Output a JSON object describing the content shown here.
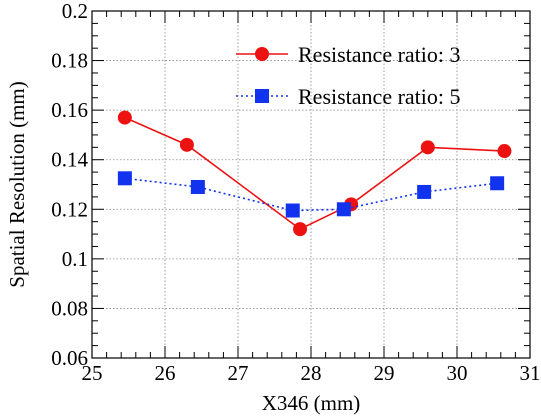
{
  "chart_data": {
    "type": "line",
    "xlabel": "X346 (mm)",
    "ylabel": "Spatial Resolution (mm)",
    "xlim": [
      25,
      31
    ],
    "ylim": [
      0.06,
      0.2
    ],
    "x_ticks": [
      25,
      26,
      27,
      28,
      29,
      30,
      31
    ],
    "x_tick_labels": [
      "25",
      "26",
      "27",
      "28",
      "29",
      "30",
      "31"
    ],
    "y_ticks": [
      0.06,
      0.08,
      0.1,
      0.12,
      0.14,
      0.16,
      0.18,
      0.2
    ],
    "y_tick_labels": [
      "0.06",
      "0.08",
      "0.1",
      "0.12",
      "0.14",
      "0.16",
      "0.18",
      "0.2"
    ],
    "grid": true,
    "legend_position": "top-right",
    "series": [
      {
        "name": "Resistance ratio: 3",
        "color": "#ee1111",
        "marker": "circle",
        "line_style": "solid",
        "x": [
          25.45,
          26.3,
          27.85,
          28.55,
          29.6,
          30.65
        ],
        "y": [
          0.157,
          0.146,
          0.112,
          0.122,
          0.145,
          0.1435
        ]
      },
      {
        "name": "Resistance ratio: 5",
        "color": "#1133ee",
        "marker": "square",
        "line_style": "dotted",
        "x": [
          25.45,
          26.45,
          27.75,
          28.45,
          29.55,
          30.55
        ],
        "y": [
          0.1325,
          0.129,
          0.1195,
          0.12,
          0.127,
          0.1305
        ]
      }
    ]
  }
}
